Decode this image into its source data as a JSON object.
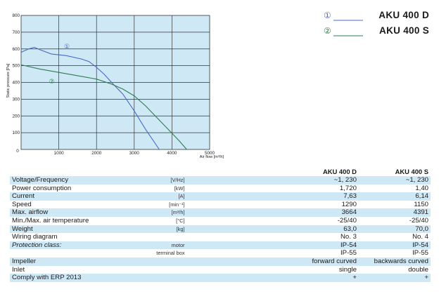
{
  "chart_data": {
    "type": "line",
    "xlabel": "Air flow [m³/h]",
    "ylabel": "Static pressure [Pa]",
    "xlim": [
      0,
      5000
    ],
    "ylim": [
      0,
      800
    ],
    "xticks": [
      1000,
      2000,
      3000,
      4000,
      5000
    ],
    "yticks": [
      100,
      200,
      300,
      400,
      500,
      600,
      700,
      800
    ],
    "origin_label": "0",
    "grid": true,
    "series": [
      {
        "name": "AKU 400 D",
        "marker": "①",
        "x": [
          0,
          200,
          350,
          500,
          800,
          1200,
          1600,
          1800,
          2000,
          2200,
          2400,
          2700,
          3000,
          3300,
          3664
        ],
        "y": [
          580,
          600,
          610,
          595,
          570,
          560,
          540,
          525,
          490,
          450,
          400,
          330,
          230,
          120,
          0
        ]
      },
      {
        "name": "AKU 400 S",
        "marker": "②",
        "x": [
          0,
          500,
          1000,
          1500,
          2000,
          2400,
          2700,
          3000,
          3300,
          3600,
          3900,
          4200,
          4391
        ],
        "y": [
          505,
          480,
          460,
          440,
          420,
          390,
          360,
          320,
          260,
          190,
          120,
          50,
          0
        ]
      }
    ],
    "colors": {
      "d": "#4a6bbf",
      "s": "#2e7d4f",
      "plot_bg": "#cfe8f6",
      "grid": "#333333"
    }
  },
  "legend": [
    {
      "marker": "①",
      "name": "AKU  400 D"
    },
    {
      "marker": "②",
      "name": "AKU 400 S"
    }
  ],
  "table": {
    "headers": [
      "AKU 400 D",
      "AKU 400 S"
    ],
    "rows": [
      {
        "label": "Voltage/Frequency",
        "unit": "[V/Hz]",
        "d": "~1, 230",
        "s": "~1, 230",
        "shade": true
      },
      {
        "label": "Power consumption",
        "unit": "[kW]",
        "d": "1,720",
        "s": "1,40",
        "shade": false
      },
      {
        "label": "Current",
        "unit": "[A]",
        "d": "7,63",
        "s": "6,14",
        "shade": true
      },
      {
        "label": "Speed",
        "unit": "[min⁻¹]",
        "d": "1290",
        "s": "1150",
        "shade": false
      },
      {
        "label": "Max. airflow",
        "unit": "[m³/h]",
        "d": "3664",
        "s": "4391",
        "shade": true
      },
      {
        "label": "Min./Max. air temperature",
        "unit": "[°C]",
        "d": "-25/40",
        "s": "-25/40",
        "shade": false
      },
      {
        "label": "Weight",
        "unit": "[kg]",
        "d": "63,0",
        "s": "70,0",
        "shade": true
      },
      {
        "label": "Wiring diagram",
        "unit": "",
        "d": "No. 3",
        "s": "No. 4",
        "shade": false
      },
      {
        "label": "Protection class:",
        "unit": "motor",
        "d": "IP-54",
        "s": "IP-54",
        "shade": true,
        "italic": true
      },
      {
        "label": "",
        "unit": "terminal box",
        "d": "IP-55",
        "s": "IP-55",
        "shade": false
      },
      {
        "label": "Impeller",
        "unit": "",
        "d": "forward curved",
        "s": "backwards curved",
        "shade": true
      },
      {
        "label": "Inlet",
        "unit": "",
        "d": "single",
        "s": "double",
        "shade": false
      },
      {
        "label": "Comply with ERP 2013",
        "unit": "",
        "d": "+",
        "s": "+",
        "shade": true
      }
    ]
  }
}
